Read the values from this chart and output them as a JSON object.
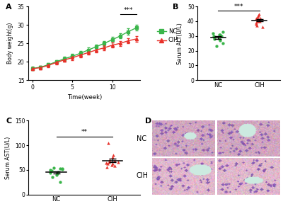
{
  "panel_A": {
    "title": "A",
    "xlabel": "Time(week)",
    "ylabel": "Body weight(g)",
    "ylim": [
      15,
      35
    ],
    "xlim": [
      -0.5,
      13.5
    ],
    "yticks": [
      15,
      20,
      25,
      30,
      35
    ],
    "xticks": [
      0,
      5,
      10
    ],
    "nc_x": [
      0,
      1,
      2,
      3,
      4,
      5,
      6,
      7,
      8,
      9,
      10,
      11,
      12,
      13
    ],
    "nc_y": [
      18.2,
      18.5,
      19.2,
      20.0,
      20.8,
      21.5,
      22.3,
      23.2,
      24.1,
      25.0,
      26.0,
      27.0,
      28.2,
      29.2
    ],
    "nc_err": [
      0.4,
      0.4,
      0.5,
      0.5,
      0.5,
      0.6,
      0.6,
      0.6,
      0.6,
      0.7,
      0.7,
      0.7,
      0.8,
      0.8
    ],
    "cih_x": [
      0,
      1,
      2,
      3,
      4,
      5,
      6,
      7,
      8,
      9,
      10,
      11,
      12,
      13
    ],
    "cih_y": [
      18.1,
      18.4,
      19.0,
      19.8,
      20.5,
      21.1,
      21.8,
      22.5,
      23.2,
      23.8,
      24.5,
      25.0,
      25.7,
      26.2
    ],
    "cih_err": [
      0.4,
      0.4,
      0.5,
      0.5,
      0.5,
      0.6,
      0.6,
      0.6,
      0.6,
      0.6,
      0.7,
      0.7,
      0.7,
      0.7
    ],
    "nc_color": "#3ab54a",
    "cih_color": "#e8312a",
    "sig_x1": 11,
    "sig_x2": 13,
    "sig_y": 33.0,
    "sig_text": "***"
  },
  "panel_B": {
    "title": "B",
    "ylabel": "Serum ALT(U/L)",
    "ylim": [
      0,
      50
    ],
    "yticks": [
      0,
      10,
      20,
      30,
      40,
      50
    ],
    "nc_data": [
      23,
      25,
      27,
      28,
      28,
      29,
      30,
      30,
      31,
      31,
      32,
      33
    ],
    "cih_data": [
      36,
      37,
      38,
      39,
      40,
      40,
      41,
      41,
      42,
      42,
      43,
      44,
      45
    ],
    "nc_color": "#3ab54a",
    "cih_color": "#e8312a",
    "sig_text": "***",
    "categories": [
      "NC",
      "CIH"
    ]
  },
  "panel_C": {
    "title": "C",
    "ylabel": "Serum AST(U/L)",
    "ylim": [
      0,
      150
    ],
    "yticks": [
      0,
      50,
      100,
      150
    ],
    "nc_data": [
      25,
      35,
      40,
      42,
      44,
      46,
      48,
      50,
      51,
      52,
      53,
      54
    ],
    "cih_data": [
      55,
      58,
      60,
      62,
      63,
      64,
      65,
      66,
      68,
      70,
      75,
      80,
      105
    ],
    "nc_color": "#3ab54a",
    "cih_color": "#e8312a",
    "sig_text": "**",
    "categories": [
      "NC",
      "CIH"
    ]
  },
  "panel_D": {
    "title": "D",
    "nc_label": "NC",
    "cih_label": "CIH",
    "bg_color": "#c8a0b8",
    "vessel_color": "#b0d8c8",
    "cell_color": "#e8c0d0"
  },
  "legend": {
    "nc_label": "NC",
    "cih_label": "CIH",
    "nc_color": "#3ab54a",
    "cih_color": "#e8312a"
  }
}
